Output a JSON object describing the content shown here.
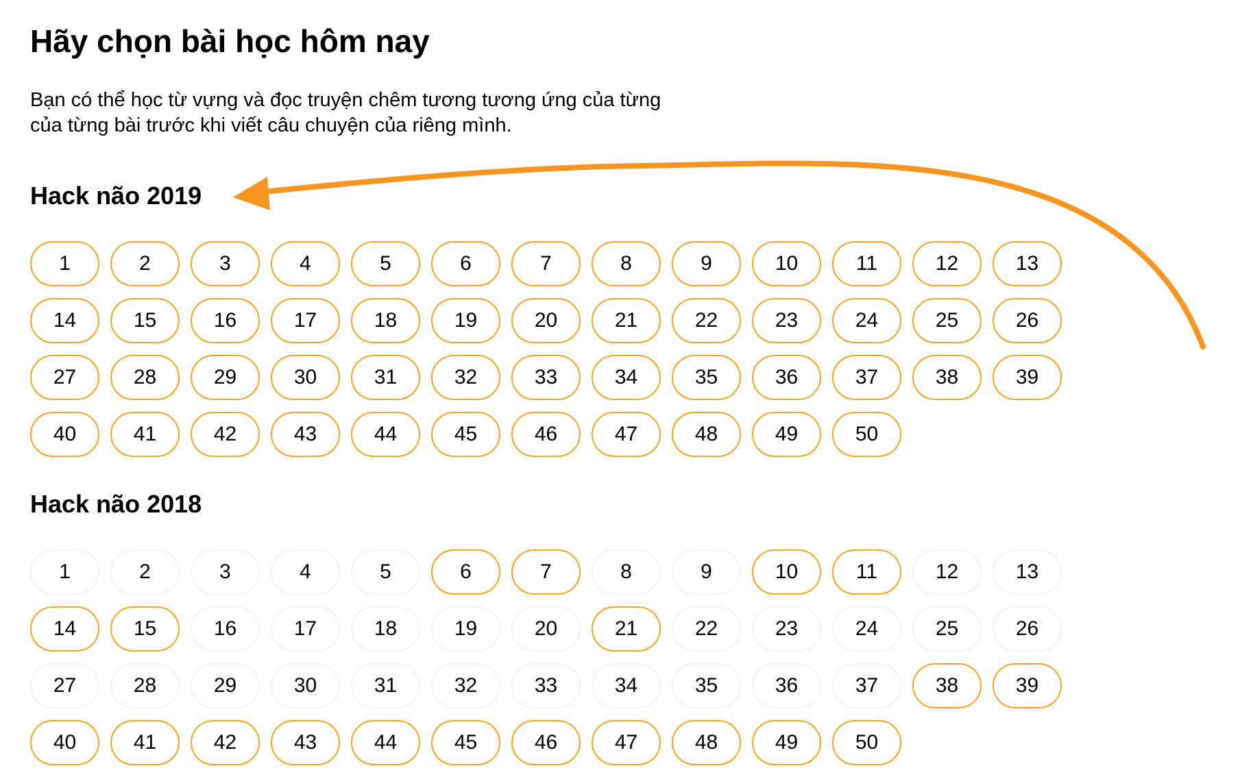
{
  "header": {
    "title": "Hãy chọn bài học hôm nay",
    "intro_line1": "Bạn có thể học từ vựng và đọc truyện chêm tương tương ứng của từng",
    "intro_line2": "của từng bài trước khi viết câu chuyện của riêng mình."
  },
  "colors": {
    "accent": "#f6a623",
    "arrow": "#f79521",
    "inactive_border": "#f4f4f4"
  },
  "sections": [
    {
      "title": "Hack não 2019",
      "lessons": [
        {
          "label": "1",
          "active": true
        },
        {
          "label": "2",
          "active": true
        },
        {
          "label": "3",
          "active": true
        },
        {
          "label": "4",
          "active": true
        },
        {
          "label": "5",
          "active": true
        },
        {
          "label": "6",
          "active": true
        },
        {
          "label": "7",
          "active": true
        },
        {
          "label": "8",
          "active": true
        },
        {
          "label": "9",
          "active": true
        },
        {
          "label": "10",
          "active": true
        },
        {
          "label": "11",
          "active": true
        },
        {
          "label": "12",
          "active": true
        },
        {
          "label": "13",
          "active": true
        },
        {
          "label": "14",
          "active": true
        },
        {
          "label": "15",
          "active": true
        },
        {
          "label": "16",
          "active": true
        },
        {
          "label": "17",
          "active": true
        },
        {
          "label": "18",
          "active": true
        },
        {
          "label": "19",
          "active": true
        },
        {
          "label": "20",
          "active": true
        },
        {
          "label": "21",
          "active": true
        },
        {
          "label": "22",
          "active": true
        },
        {
          "label": "23",
          "active": true
        },
        {
          "label": "24",
          "active": true
        },
        {
          "label": "25",
          "active": true
        },
        {
          "label": "26",
          "active": true
        },
        {
          "label": "27",
          "active": true
        },
        {
          "label": "28",
          "active": true
        },
        {
          "label": "29",
          "active": true
        },
        {
          "label": "30",
          "active": true
        },
        {
          "label": "31",
          "active": true
        },
        {
          "label": "32",
          "active": true
        },
        {
          "label": "33",
          "active": true
        },
        {
          "label": "34",
          "active": true
        },
        {
          "label": "35",
          "active": true
        },
        {
          "label": "36",
          "active": true
        },
        {
          "label": "37",
          "active": true
        },
        {
          "label": "38",
          "active": true
        },
        {
          "label": "39",
          "active": true
        },
        {
          "label": "40",
          "active": true
        },
        {
          "label": "41",
          "active": true
        },
        {
          "label": "42",
          "active": true
        },
        {
          "label": "43",
          "active": true
        },
        {
          "label": "44",
          "active": true
        },
        {
          "label": "45",
          "active": true
        },
        {
          "label": "46",
          "active": true
        },
        {
          "label": "47",
          "active": true
        },
        {
          "label": "48",
          "active": true
        },
        {
          "label": "49",
          "active": true
        },
        {
          "label": "50",
          "active": true
        }
      ]
    },
    {
      "title": "Hack não 2018",
      "lessons": [
        {
          "label": "1",
          "active": false
        },
        {
          "label": "2",
          "active": false
        },
        {
          "label": "3",
          "active": false
        },
        {
          "label": "4",
          "active": false
        },
        {
          "label": "5",
          "active": false
        },
        {
          "label": "6",
          "active": true
        },
        {
          "label": "7",
          "active": true
        },
        {
          "label": "8",
          "active": false
        },
        {
          "label": "9",
          "active": false
        },
        {
          "label": "10",
          "active": true
        },
        {
          "label": "11",
          "active": true
        },
        {
          "label": "12",
          "active": false
        },
        {
          "label": "13",
          "active": false
        },
        {
          "label": "14",
          "active": true
        },
        {
          "label": "15",
          "active": true
        },
        {
          "label": "16",
          "active": false
        },
        {
          "label": "17",
          "active": false
        },
        {
          "label": "18",
          "active": false
        },
        {
          "label": "19",
          "active": false
        },
        {
          "label": "20",
          "active": false
        },
        {
          "label": "21",
          "active": true
        },
        {
          "label": "22",
          "active": false
        },
        {
          "label": "23",
          "active": false
        },
        {
          "label": "24",
          "active": false
        },
        {
          "label": "25",
          "active": false
        },
        {
          "label": "26",
          "active": false
        },
        {
          "label": "27",
          "active": false
        },
        {
          "label": "28",
          "active": false
        },
        {
          "label": "29",
          "active": false
        },
        {
          "label": "30",
          "active": false
        },
        {
          "label": "31",
          "active": false
        },
        {
          "label": "32",
          "active": false
        },
        {
          "label": "33",
          "active": false
        },
        {
          "label": "34",
          "active": false
        },
        {
          "label": "35",
          "active": false
        },
        {
          "label": "36",
          "active": false
        },
        {
          "label": "37",
          "active": false
        },
        {
          "label": "38",
          "active": true
        },
        {
          "label": "39",
          "active": true
        },
        {
          "label": "40",
          "active": true
        },
        {
          "label": "41",
          "active": true
        },
        {
          "label": "42",
          "active": true
        },
        {
          "label": "43",
          "active": true
        },
        {
          "label": "44",
          "active": true
        },
        {
          "label": "45",
          "active": true
        },
        {
          "label": "46",
          "active": true
        },
        {
          "label": "47",
          "active": true
        },
        {
          "label": "48",
          "active": true
        },
        {
          "label": "49",
          "active": true
        },
        {
          "label": "50",
          "active": true
        }
      ]
    }
  ]
}
